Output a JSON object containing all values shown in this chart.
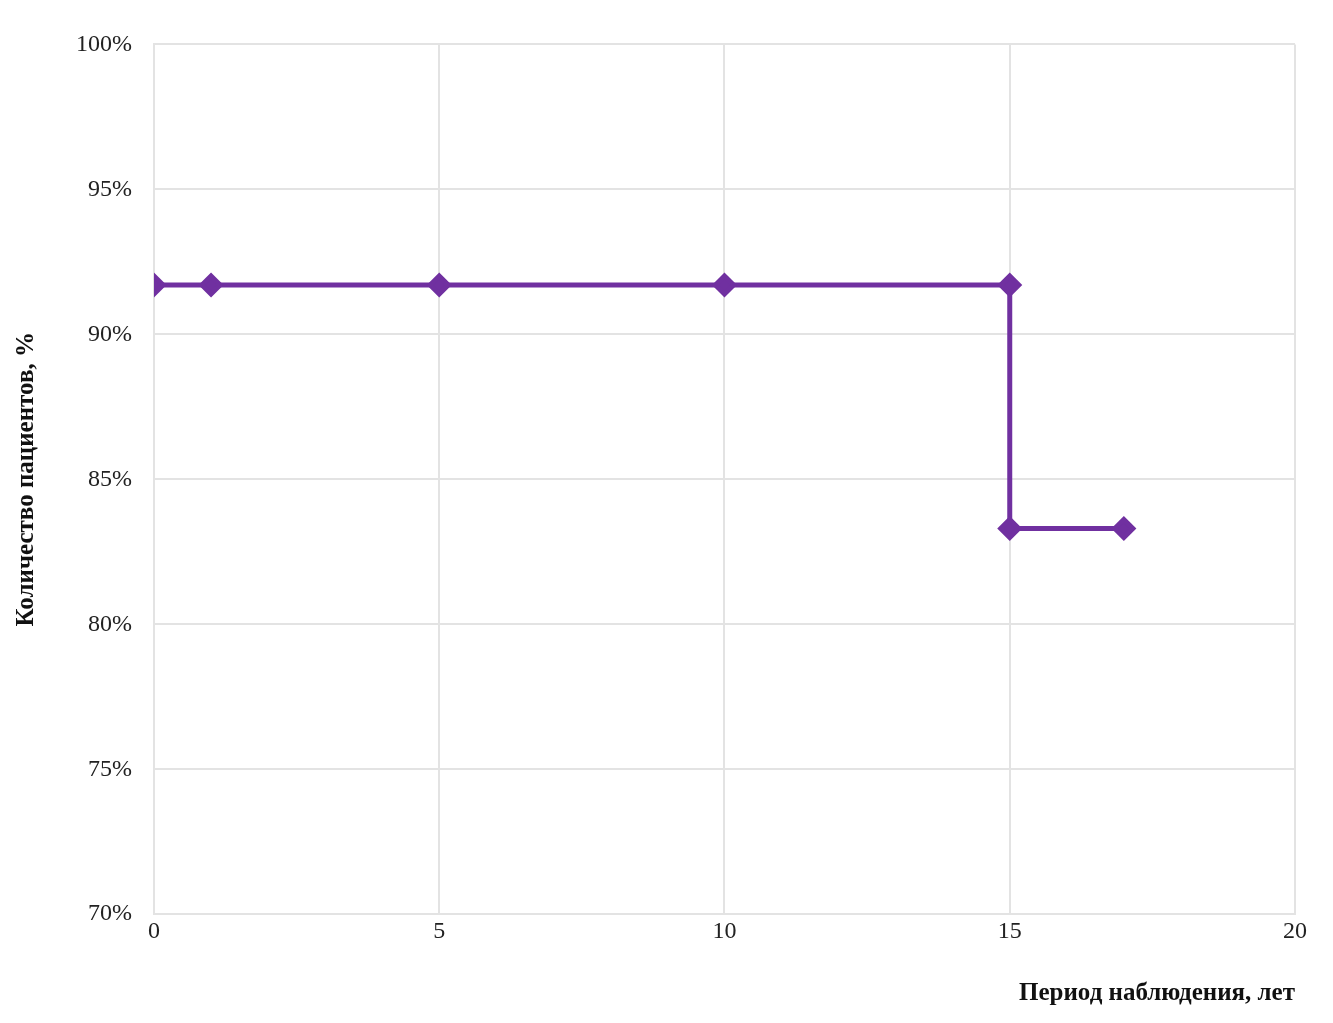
{
  "chart_data": {
    "type": "line",
    "xlabel": "Период наблюдения, лет",
    "ylabel": "Количество пациентов, %",
    "x": [
      0,
      1,
      5,
      10,
      15,
      15,
      17
    ],
    "series": [
      {
        "color": "#7030a0",
        "values": [
          91.7,
          91.7,
          91.7,
          91.7,
          91.7,
          83.3,
          83.3
        ]
      }
    ],
    "xlim": [
      0,
      20
    ],
    "xticks": [
      0,
      5,
      10,
      15,
      20
    ],
    "ylim": [
      70,
      100
    ],
    "yticks": [
      {
        "value": 70,
        "label": "70%"
      },
      {
        "value": 75,
        "label": "75%"
      },
      {
        "value": 80,
        "label": "80%"
      },
      {
        "value": 85,
        "label": "85%"
      },
      {
        "value": 90,
        "label": "90%"
      },
      {
        "value": 95,
        "label": "95%"
      },
      {
        "value": 100,
        "label": "100%"
      }
    ],
    "grid": true,
    "legend": false,
    "marker": "diamond",
    "line_style": "solid"
  }
}
